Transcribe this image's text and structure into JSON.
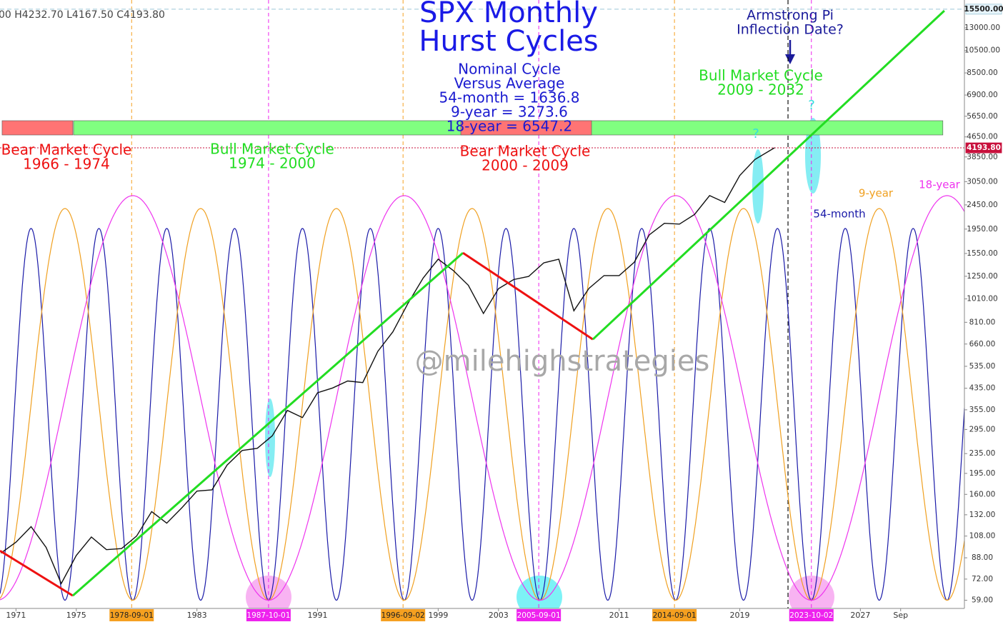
{
  "chart_data": {
    "type": "cycles",
    "header": "00   H4232.70   L4167.50   C4193.80",
    "xlim": [
      1969.94,
      2033.9
    ],
    "ylim": [
      54.6,
      16900
    ],
    "log_scale": true,
    "xticks": [
      1971,
      1975,
      1983,
      1991,
      1999,
      2003,
      2011,
      2019,
      2027,
      {
        "value": 2029.67,
        "label": "Sep"
      }
    ],
    "yticks": [
      {
        "value": 59,
        "label": "59.00"
      },
      {
        "value": 72,
        "label": "72.00"
      },
      {
        "value": 88,
        "label": "88.00"
      },
      {
        "value": 108,
        "label": "108.00"
      },
      {
        "value": 132,
        "label": "132.00"
      },
      {
        "value": 160,
        "label": "160.00"
      },
      {
        "value": 195,
        "label": "195.00"
      },
      {
        "value": 235,
        "label": "235.00"
      },
      {
        "value": 295,
        "label": "295.00"
      },
      {
        "value": 355,
        "label": "355.00"
      },
      {
        "value": 435,
        "label": "435.00"
      },
      {
        "value": 535,
        "label": "535.00"
      },
      {
        "value": 660,
        "label": "660.00"
      },
      {
        "value": 810,
        "label": "810.00"
      },
      {
        "value": 1010,
        "label": "1010.00"
      },
      {
        "value": 1250,
        "label": "1250.00"
      },
      {
        "value": 1550,
        "label": "1550.00"
      },
      {
        "value": 1950,
        "label": "1950.00"
      },
      {
        "value": 2450,
        "label": "2450.00"
      },
      {
        "value": 3050,
        "label": "3050.00"
      },
      {
        "value": 3850,
        "label": "3850.00"
      },
      {
        "value": 4650,
        "label": "4650.00"
      },
      {
        "value": 5650,
        "label": "5650.00"
      },
      {
        "value": 6900,
        "label": "6900.00"
      },
      {
        "value": 8500,
        "label": "8500.00"
      },
      {
        "value": 10500,
        "label": "10500.00"
      },
      {
        "value": 13000,
        "label": "13000.00"
      }
    ],
    "price_labels": [
      {
        "value": 15500,
        "label": "15500.00",
        "color": "#e6f4fb",
        "text_color": "#222222",
        "line_color": "#9cc7d6"
      },
      {
        "value": 4193.8,
        "label": "4193.80",
        "color": "#c8103c",
        "text_color": "#ffffff",
        "line_color": "#c8103c"
      }
    ],
    "date_markers": [
      {
        "value": 1978.67,
        "label": "1978-09-01",
        "color": "#f5a020"
      },
      {
        "value": 1987.75,
        "label": "1987-10-01",
        "color": "#ee22ee"
      },
      {
        "value": 1996.67,
        "label": "1996-09-02",
        "color": "#f5a020"
      },
      {
        "value": 2005.67,
        "label": "2005-09-01",
        "color": "#ee22ee"
      },
      {
        "value": 2014.67,
        "label": "2014-09-01",
        "color": "#f5a020"
      },
      {
        "value": 2023.75,
        "label": "2023-10-02",
        "color": "#ee22ee"
      }
    ],
    "pi_line_x": 2022.2,
    "price": {
      "color": "#111111",
      "x": [
        1970,
        1971,
        1972,
        1973,
        1974,
        1975,
        1976,
        1977,
        1978,
        1979,
        1980,
        1981,
        1982,
        1983,
        1984,
        1985,
        1986,
        1987,
        1988,
        1989,
        1990,
        1991,
        1992,
        1993,
        1994,
        1995,
        1996,
        1997,
        1998,
        1999,
        2000,
        2001,
        2002,
        2003,
        2004,
        2005,
        2006,
        2007,
        2008,
        2009,
        2010,
        2011,
        2012,
        2013,
        2014,
        2015,
        2016,
        2017,
        2018,
        2019,
        2020,
        2021.3
      ],
      "values": [
        92,
        102,
        118,
        97,
        69,
        90,
        107,
        95,
        96,
        108,
        136,
        122,
        141,
        165,
        167,
        211,
        242,
        247,
        278,
        353,
        330,
        417,
        436,
        466,
        459,
        616,
        741,
        970,
        1229,
        1469,
        1320,
        1148,
        880,
        1112,
        1212,
        1248,
        1418,
        1468,
        903,
        1115,
        1258,
        1258,
        1426,
        1848,
        2059,
        2044,
        2239,
        2674,
        2507,
        3231,
        3756,
        4193.8
      ]
    },
    "cycles": [
      {
        "name": "54-month",
        "color": "#1a1aa8",
        "period_months": 54,
        "trough": 1987.75,
        "low": 59,
        "peak": 1962
      },
      {
        "name": "9-year",
        "color": "#f0a020",
        "period_months": 108,
        "trough": 1987.75,
        "low": 59,
        "peak": 2367
      },
      {
        "name": "18-year",
        "color": "#ee33ee",
        "period_months": 216,
        "trough": 1987.75,
        "low": 59,
        "peak": 2673
      }
    ],
    "bands": [
      {
        "start": 1970.08,
        "end": 1974.77,
        "color": "#ff7474"
      },
      {
        "start": 1974.82,
        "end": 2032.47,
        "color": "#80ff80"
      },
      {
        "start": 2000.5,
        "end": 2009.17,
        "color": "#ff7474"
      }
    ],
    "trend_lines": [
      {
        "color": "#ee1111",
        "x": [
          1969.94,
          1974.77
        ],
        "values": [
          94,
          61.6
        ]
      },
      {
        "color": "#22dd22",
        "x": [
          1974.77,
          2000.64
        ],
        "values": [
          61.6,
          1559
        ]
      },
      {
        "color": "#ee1111",
        "x": [
          2000.64,
          2009.26
        ],
        "values": [
          1559,
          690
        ]
      },
      {
        "color": "#22dd22",
        "x": [
          2009.26,
          2032.57
        ],
        "values": [
          690,
          15280
        ]
      }
    ],
    "annotations": [
      {
        "lines": [
          "SPX Monthly",
          "Hurst Cycles"
        ],
        "color": "#1a1ae6"
      },
      {
        "lines": [
          "Nominal Cycle",
          "Versus Average",
          "54-month = 1636.8",
          "9-year = 3273.6",
          "18-year = 6547.2"
        ],
        "color": "#1a1ad0"
      },
      {
        "lines": [
          "Armstrong Pi",
          "Inflection Date?"
        ],
        "color": "#1a1a9a"
      },
      {
        "lines": [
          "Bull Market Cycle",
          "2009 - 2032"
        ],
        "color": "#22dd22"
      },
      {
        "lines": [
          "Bear Market Cycle",
          "1966 - 1974"
        ],
        "color": "#ee1111"
      },
      {
        "lines": [
          "Bull Market Cycle",
          "1974 - 2000"
        ],
        "color": "#22dd22"
      },
      {
        "lines": [
          "Bear Market Cycle",
          "2000 - 2009"
        ],
        "color": "#ee1111"
      },
      {
        "lines": [
          "@milehighstrategies"
        ],
        "color": "#a8a8a8"
      },
      {
        "lines": [
          "?"
        ],
        "color": "#33dddd"
      },
      {
        "lines": [
          "?"
        ],
        "color": "#33dddd"
      }
    ]
  }
}
